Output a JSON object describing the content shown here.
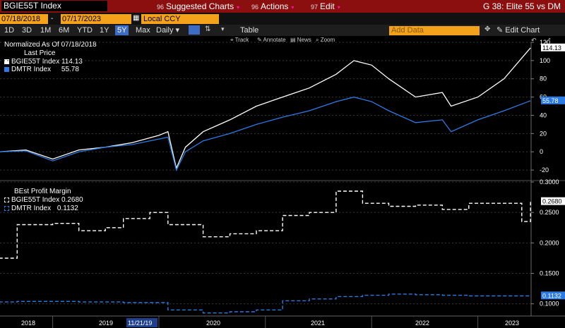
{
  "header": {
    "ticker": "BGIE55T Index",
    "menu": [
      {
        "num": "96",
        "label": "Suggested Charts"
      },
      {
        "num": "96",
        "label": "Actions"
      },
      {
        "num": "97",
        "label": "Edit"
      }
    ],
    "title": "G 38: Elite 55 vs DM"
  },
  "toolbar": {
    "start_date": "07/18/2018",
    "end_date": "07/17/2023",
    "currency": "Local CCY",
    "ranges": [
      "1D",
      "3D",
      "1M",
      "6M",
      "YTD",
      "1Y",
      "5Y",
      "Max"
    ],
    "active_range": "5Y",
    "frequency": "Daily",
    "table_label": "Table",
    "add_data_placeholder": "Add Data",
    "edit_chart": "Edit Chart",
    "tools": [
      "Track",
      "Annotate",
      "News",
      "Zoom"
    ]
  },
  "chart_data": [
    {
      "type": "line",
      "title": "Normalized As Of 07/18/2018",
      "subtitle": "Last Price",
      "ylim": [
        -30,
        120
      ],
      "yticks": [
        -20,
        0,
        20,
        40,
        60,
        80,
        100,
        120
      ],
      "colors": {
        "BGIE55T Index": "#ffffff",
        "DMTR Index": "#2c7be5"
      },
      "x": [
        "2018-07",
        "2018-10",
        "2019-01",
        "2019-04",
        "2019-07",
        "2019-10",
        "2020-01",
        "2020-02",
        "2020-03",
        "2020-04",
        "2020-06",
        "2020-09",
        "2020-12",
        "2021-03",
        "2021-06",
        "2021-09",
        "2021-11",
        "2022-01",
        "2022-03",
        "2022-06",
        "2022-09",
        "2022-10",
        "2023-01",
        "2023-04",
        "2023-07"
      ],
      "series": [
        {
          "name": "BGIE55T Index",
          "last": "114.13",
          "values": [
            0,
            2,
            -8,
            2,
            5,
            10,
            18,
            22,
            -18,
            5,
            22,
            35,
            50,
            60,
            70,
            85,
            100,
            95,
            80,
            60,
            65,
            50,
            60,
            80,
            114
          ]
        },
        {
          "name": "DMTR Index",
          "last": "55.78",
          "values": [
            0,
            1,
            -10,
            0,
            5,
            8,
            14,
            16,
            -20,
            0,
            12,
            20,
            30,
            38,
            45,
            55,
            60,
            55,
            45,
            32,
            35,
            22,
            35,
            45,
            56
          ]
        }
      ]
    },
    {
      "type": "line",
      "title": "BEst Profit Margin",
      "ylim": [
        0.08,
        0.3
      ],
      "yticks": [
        0.1,
        0.15,
        0.2,
        0.25,
        0.3
      ],
      "ytick_labels": [
        "0.1000",
        "0.1500",
        "0.2000",
        "0.2500",
        "0.3000"
      ],
      "colors": {
        "BGIE55T Index": "#ffffff",
        "DMTR Index": "#2c7be5"
      },
      "x": [
        "2018-07",
        "2018-09",
        "2019-01",
        "2019-04",
        "2019-07",
        "2019-09",
        "2019-12",
        "2020-02",
        "2020-06",
        "2020-09",
        "2020-12",
        "2021-03",
        "2021-06",
        "2021-09",
        "2021-12",
        "2022-03",
        "2022-06",
        "2022-09",
        "2022-12",
        "2023-03",
        "2023-06",
        "2023-07"
      ],
      "series": [
        {
          "name": "BGIE55T Index",
          "last": "0.2680",
          "values": [
            0.175,
            0.23,
            0.232,
            0.22,
            0.225,
            0.24,
            0.25,
            0.23,
            0.21,
            0.215,
            0.22,
            0.245,
            0.25,
            0.285,
            0.265,
            0.26,
            0.262,
            0.255,
            0.265,
            0.265,
            0.235,
            0.268
          ]
        },
        {
          "name": "DMTR Index",
          "last": "0.1132",
          "values": [
            0.103,
            0.104,
            0.104,
            0.103,
            0.103,
            0.102,
            0.102,
            0.09,
            0.085,
            0.087,
            0.09,
            0.105,
            0.108,
            0.112,
            0.114,
            0.116,
            0.115,
            0.114,
            0.113,
            0.113,
            0.113,
            0.1132
          ]
        }
      ]
    }
  ],
  "xaxis": {
    "labels": [
      "2018",
      "2019",
      "2020",
      "2021",
      "2022",
      "2023"
    ],
    "cursor_date": "11/21/19"
  }
}
